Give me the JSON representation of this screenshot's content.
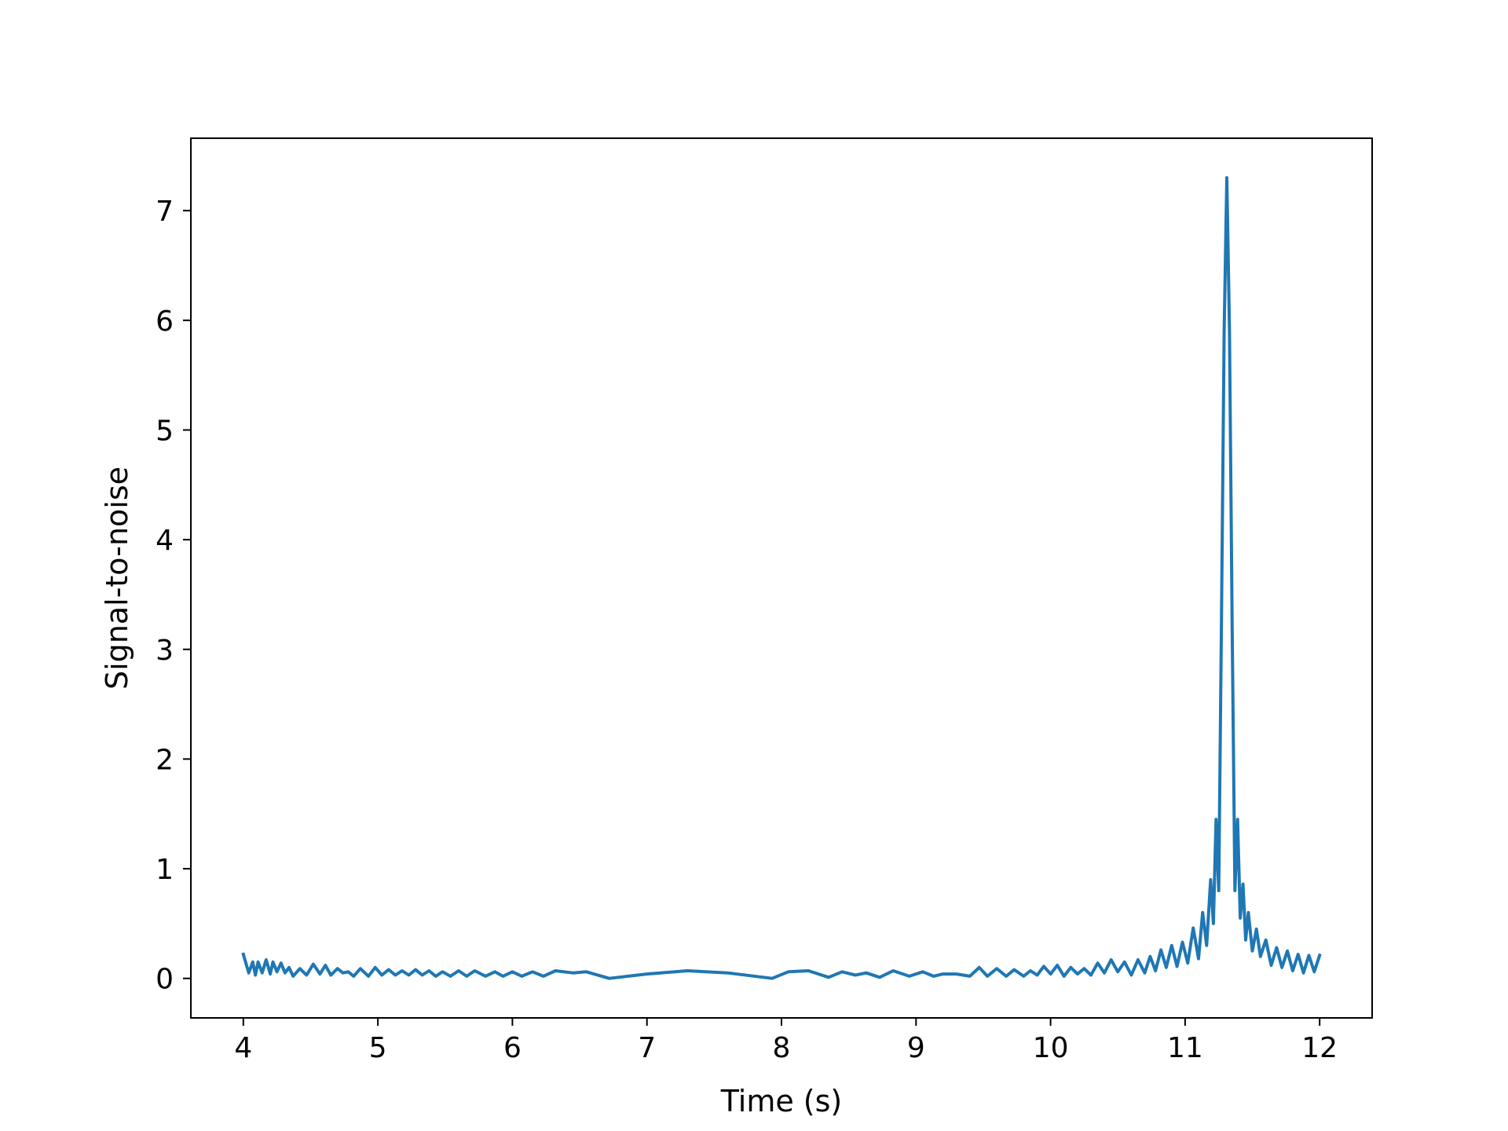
{
  "chart_data": {
    "type": "line",
    "xlabel": "Time (s)",
    "ylabel": "Signal-to-noise",
    "xlim": [
      3.61,
      12.39
    ],
    "ylim": [
      -0.36,
      7.66
    ],
    "xticks": [
      4,
      5,
      6,
      7,
      8,
      9,
      10,
      11,
      12
    ],
    "yticks": [
      0,
      1,
      2,
      3,
      4,
      5,
      6,
      7
    ],
    "grid": false,
    "colors": {
      "line": "#1f77b4"
    },
    "series": [
      {
        "x": [
          4.0,
          4.04,
          4.07,
          4.09,
          4.11,
          4.14,
          4.17,
          4.2,
          4.22,
          4.25,
          4.28,
          4.31,
          4.34,
          4.37,
          4.42,
          4.47,
          4.52,
          4.57,
          4.61,
          4.65,
          4.7,
          4.74,
          4.78,
          4.82,
          4.87,
          4.93,
          4.98,
          5.03,
          5.08,
          5.13,
          5.18,
          5.23,
          5.28,
          5.33,
          5.38,
          5.43,
          5.48,
          5.54,
          5.6,
          5.66,
          5.72,
          5.8,
          5.87,
          5.93,
          6.0,
          6.07,
          6.15,
          6.23,
          6.32,
          6.45,
          6.55,
          6.72,
          7.0,
          7.3,
          7.6,
          7.93,
          8.05,
          8.2,
          8.35,
          8.45,
          8.55,
          8.63,
          8.73,
          8.83,
          8.95,
          9.05,
          9.13,
          9.2,
          9.3,
          9.4,
          9.47,
          9.53,
          9.6,
          9.67,
          9.73,
          9.8,
          9.85,
          9.9,
          9.95,
          10.0,
          10.05,
          10.1,
          10.15,
          10.2,
          10.25,
          10.3,
          10.35,
          10.4,
          10.45,
          10.5,
          10.55,
          10.6,
          10.65,
          10.7,
          10.74,
          10.78,
          10.82,
          10.86,
          10.9,
          10.94,
          10.98,
          11.02,
          11.06,
          11.1,
          11.13,
          11.16,
          11.19,
          11.21,
          11.23,
          11.25,
          11.27,
          11.29,
          11.31,
          11.33,
          11.35,
          11.37,
          11.39,
          11.41,
          11.43,
          11.45,
          11.47,
          11.5,
          11.53,
          11.56,
          11.6,
          11.64,
          11.68,
          11.72,
          11.76,
          11.8,
          11.84,
          11.88,
          11.92,
          11.96,
          12.0
        ],
        "y": [
          0.22,
          0.05,
          0.15,
          0.03,
          0.15,
          0.05,
          0.17,
          0.04,
          0.15,
          0.06,
          0.14,
          0.05,
          0.1,
          0.02,
          0.09,
          0.03,
          0.13,
          0.04,
          0.12,
          0.03,
          0.09,
          0.05,
          0.06,
          0.02,
          0.09,
          0.02,
          0.1,
          0.03,
          0.08,
          0.03,
          0.07,
          0.03,
          0.08,
          0.03,
          0.07,
          0.02,
          0.06,
          0.02,
          0.07,
          0.02,
          0.07,
          0.02,
          0.06,
          0.02,
          0.06,
          0.02,
          0.06,
          0.02,
          0.07,
          0.05,
          0.06,
          0.0,
          0.04,
          0.07,
          0.05,
          0.0,
          0.06,
          0.07,
          0.01,
          0.06,
          0.03,
          0.05,
          0.01,
          0.07,
          0.02,
          0.06,
          0.02,
          0.04,
          0.04,
          0.02,
          0.1,
          0.02,
          0.09,
          0.02,
          0.08,
          0.02,
          0.07,
          0.03,
          0.11,
          0.04,
          0.12,
          0.02,
          0.1,
          0.04,
          0.09,
          0.03,
          0.14,
          0.05,
          0.17,
          0.06,
          0.15,
          0.03,
          0.17,
          0.05,
          0.2,
          0.07,
          0.26,
          0.1,
          0.3,
          0.11,
          0.33,
          0.14,
          0.46,
          0.18,
          0.6,
          0.3,
          0.9,
          0.5,
          1.45,
          0.8,
          3.2,
          5.9,
          7.3,
          5.9,
          3.2,
          0.8,
          1.45,
          0.55,
          0.86,
          0.35,
          0.6,
          0.25,
          0.45,
          0.2,
          0.35,
          0.12,
          0.28,
          0.1,
          0.25,
          0.07,
          0.22,
          0.05,
          0.21,
          0.06,
          0.21
        ]
      }
    ]
  }
}
